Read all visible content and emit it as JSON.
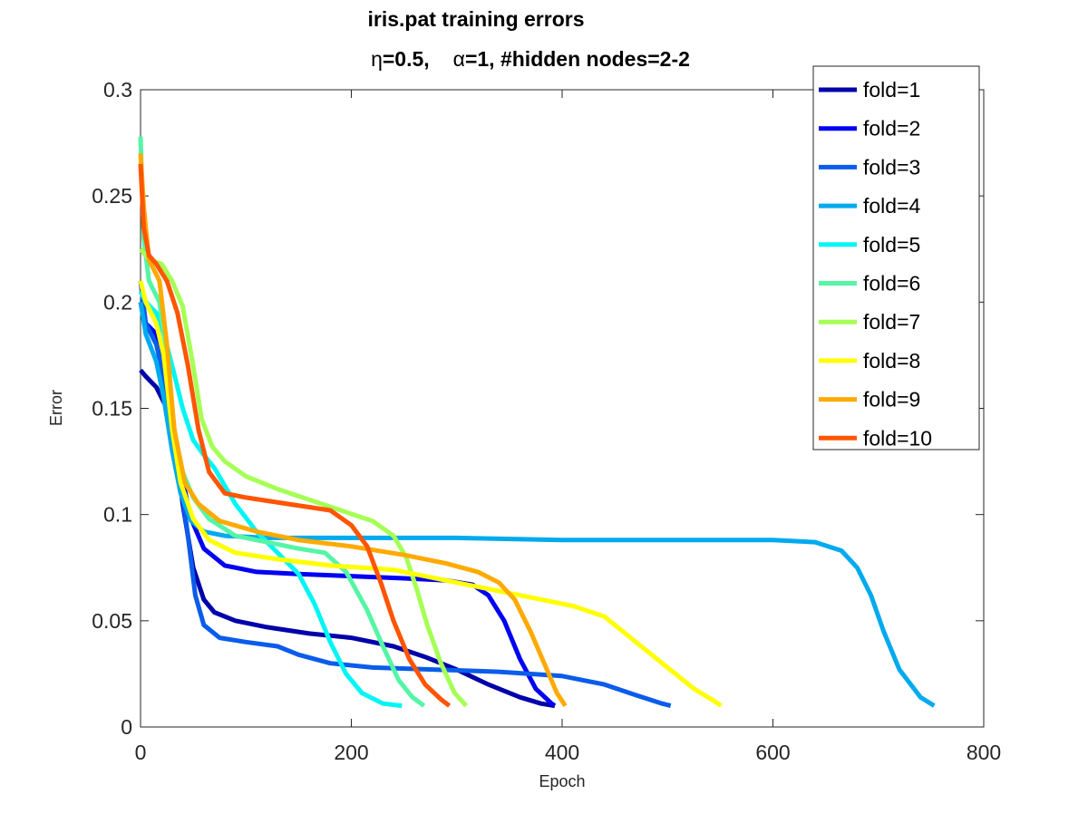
{
  "chart_data": {
    "type": "line",
    "title": "iris.pat training errors",
    "subtitle_parts": [
      "η",
      "=0.5,",
      "α",
      "=1, #hidden nodes=2-2"
    ],
    "xlabel": "Epoch",
    "ylabel": "Error",
    "xlim": [
      0,
      800
    ],
    "ylim": [
      0,
      0.3
    ],
    "xticks": [
      0,
      200,
      400,
      600,
      800
    ],
    "xtick_labels": [
      "0",
      "200",
      "400",
      "600",
      "800"
    ],
    "yticks": [
      0,
      0.05,
      0.1,
      0.15,
      0.2,
      0.25,
      0.3
    ],
    "ytick_labels": [
      "0",
      "0.05",
      "0.1",
      "0.15",
      "0.2",
      "0.25",
      "0.3"
    ],
    "grid": false,
    "legend_position": "top-right",
    "series": [
      {
        "name": "fold=1",
        "color": "#0000AA",
        "points": [
          [
            0,
            0.168
          ],
          [
            5,
            0.165
          ],
          [
            15,
            0.16
          ],
          [
            25,
            0.15
          ],
          [
            35,
            0.125
          ],
          [
            40,
            0.105
          ],
          [
            50,
            0.075
          ],
          [
            60,
            0.06
          ],
          [
            70,
            0.054
          ],
          [
            90,
            0.05
          ],
          [
            120,
            0.047
          ],
          [
            160,
            0.044
          ],
          [
            200,
            0.042
          ],
          [
            240,
            0.038
          ],
          [
            270,
            0.033
          ],
          [
            300,
            0.027
          ],
          [
            330,
            0.02
          ],
          [
            360,
            0.014
          ],
          [
            380,
            0.011
          ],
          [
            393,
            0.01
          ]
        ]
      },
      {
        "name": "fold=2",
        "color": "#0000F2",
        "points": [
          [
            0,
            0.2
          ],
          [
            5,
            0.19
          ],
          [
            15,
            0.185
          ],
          [
            25,
            0.17
          ],
          [
            32,
            0.14
          ],
          [
            38,
            0.12
          ],
          [
            48,
            0.098
          ],
          [
            60,
            0.084
          ],
          [
            80,
            0.076
          ],
          [
            110,
            0.073
          ],
          [
            150,
            0.072
          ],
          [
            200,
            0.071
          ],
          [
            250,
            0.07
          ],
          [
            290,
            0.069
          ],
          [
            315,
            0.067
          ],
          [
            330,
            0.062
          ],
          [
            345,
            0.05
          ],
          [
            360,
            0.032
          ],
          [
            375,
            0.018
          ],
          [
            390,
            0.011
          ],
          [
            393,
            0.01
          ]
        ]
      },
      {
        "name": "fold=3",
        "color": "#0A5CEB",
        "points": [
          [
            0,
            0.21
          ],
          [
            5,
            0.19
          ],
          [
            15,
            0.18
          ],
          [
            22,
            0.165
          ],
          [
            30,
            0.14
          ],
          [
            38,
            0.115
          ],
          [
            45,
            0.09
          ],
          [
            52,
            0.062
          ],
          [
            60,
            0.048
          ],
          [
            75,
            0.042
          ],
          [
            100,
            0.04
          ],
          [
            130,
            0.038
          ],
          [
            150,
            0.034
          ],
          [
            180,
            0.03
          ],
          [
            220,
            0.028
          ],
          [
            280,
            0.027
          ],
          [
            340,
            0.026
          ],
          [
            400,
            0.024
          ],
          [
            440,
            0.02
          ],
          [
            470,
            0.015
          ],
          [
            495,
            0.011
          ],
          [
            503,
            0.01
          ]
        ]
      },
      {
        "name": "fold=4",
        "color": "#00AAEE",
        "points": [
          [
            0,
            0.2
          ],
          [
            5,
            0.185
          ],
          [
            15,
            0.172
          ],
          [
            22,
            0.155
          ],
          [
            30,
            0.13
          ],
          [
            38,
            0.11
          ],
          [
            48,
            0.097
          ],
          [
            60,
            0.092
          ],
          [
            80,
            0.09
          ],
          [
            120,
            0.089
          ],
          [
            200,
            0.089
          ],
          [
            300,
            0.089
          ],
          [
            400,
            0.088
          ],
          [
            500,
            0.088
          ],
          [
            600,
            0.088
          ],
          [
            640,
            0.087
          ],
          [
            665,
            0.083
          ],
          [
            680,
            0.075
          ],
          [
            693,
            0.062
          ],
          [
            705,
            0.045
          ],
          [
            720,
            0.027
          ],
          [
            740,
            0.014
          ],
          [
            753,
            0.01
          ]
        ]
      },
      {
        "name": "fold=5",
        "color": "#00F5F5",
        "points": [
          [
            0,
            0.205
          ],
          [
            5,
            0.2
          ],
          [
            15,
            0.195
          ],
          [
            22,
            0.185
          ],
          [
            30,
            0.17
          ],
          [
            40,
            0.15
          ],
          [
            50,
            0.135
          ],
          [
            60,
            0.128
          ],
          [
            70,
            0.122
          ],
          [
            90,
            0.105
          ],
          [
            110,
            0.092
          ],
          [
            130,
            0.082
          ],
          [
            150,
            0.072
          ],
          [
            165,
            0.058
          ],
          [
            180,
            0.04
          ],
          [
            195,
            0.025
          ],
          [
            210,
            0.016
          ],
          [
            230,
            0.011
          ],
          [
            248,
            0.01
          ]
        ]
      },
      {
        "name": "fold=6",
        "color": "#55F5A5",
        "points": [
          [
            0,
            0.278
          ],
          [
            3,
            0.23
          ],
          [
            8,
            0.21
          ],
          [
            18,
            0.2
          ],
          [
            25,
            0.175
          ],
          [
            32,
            0.14
          ],
          [
            40,
            0.12
          ],
          [
            50,
            0.108
          ],
          [
            65,
            0.098
          ],
          [
            90,
            0.09
          ],
          [
            120,
            0.087
          ],
          [
            150,
            0.084
          ],
          [
            175,
            0.082
          ],
          [
            195,
            0.073
          ],
          [
            215,
            0.055
          ],
          [
            230,
            0.038
          ],
          [
            245,
            0.022
          ],
          [
            258,
            0.014
          ],
          [
            269,
            0.01
          ]
        ]
      },
      {
        "name": "fold=7",
        "color": "#A5FF55",
        "points": [
          [
            0,
            0.225
          ],
          [
            8,
            0.22
          ],
          [
            20,
            0.218
          ],
          [
            30,
            0.21
          ],
          [
            40,
            0.198
          ],
          [
            50,
            0.17
          ],
          [
            58,
            0.145
          ],
          [
            68,
            0.132
          ],
          [
            80,
            0.125
          ],
          [
            100,
            0.118
          ],
          [
            130,
            0.112
          ],
          [
            160,
            0.107
          ],
          [
            190,
            0.102
          ],
          [
            220,
            0.097
          ],
          [
            240,
            0.09
          ],
          [
            252,
            0.08
          ],
          [
            262,
            0.065
          ],
          [
            272,
            0.048
          ],
          [
            285,
            0.03
          ],
          [
            298,
            0.016
          ],
          [
            309,
            0.01
          ]
        ]
      },
      {
        "name": "fold=8",
        "color": "#FFFF00",
        "points": [
          [
            0,
            0.21
          ],
          [
            5,
            0.2
          ],
          [
            15,
            0.19
          ],
          [
            22,
            0.175
          ],
          [
            30,
            0.14
          ],
          [
            38,
            0.115
          ],
          [
            50,
            0.098
          ],
          [
            65,
            0.088
          ],
          [
            90,
            0.082
          ],
          [
            130,
            0.079
          ],
          [
            180,
            0.076
          ],
          [
            240,
            0.074
          ],
          [
            300,
            0.068
          ],
          [
            360,
            0.062
          ],
          [
            410,
            0.057
          ],
          [
            440,
            0.052
          ],
          [
            470,
            0.04
          ],
          [
            500,
            0.028
          ],
          [
            525,
            0.018
          ],
          [
            545,
            0.012
          ],
          [
            551,
            0.01
          ]
        ]
      },
      {
        "name": "fold=9",
        "color": "#FFAA00",
        "points": [
          [
            0,
            0.27
          ],
          [
            3,
            0.245
          ],
          [
            8,
            0.22
          ],
          [
            18,
            0.21
          ],
          [
            25,
            0.18
          ],
          [
            32,
            0.14
          ],
          [
            42,
            0.115
          ],
          [
            55,
            0.105
          ],
          [
            75,
            0.097
          ],
          [
            110,
            0.092
          ],
          [
            150,
            0.088
          ],
          [
            200,
            0.085
          ],
          [
            250,
            0.081
          ],
          [
            290,
            0.077
          ],
          [
            320,
            0.073
          ],
          [
            340,
            0.068
          ],
          [
            355,
            0.06
          ],
          [
            370,
            0.045
          ],
          [
            383,
            0.03
          ],
          [
            395,
            0.016
          ],
          [
            403,
            0.01
          ]
        ]
      },
      {
        "name": "fold=10",
        "color": "#FF5500",
        "points": [
          [
            0,
            0.265
          ],
          [
            3,
            0.235
          ],
          [
            8,
            0.222
          ],
          [
            15,
            0.218
          ],
          [
            25,
            0.21
          ],
          [
            35,
            0.195
          ],
          [
            45,
            0.17
          ],
          [
            55,
            0.14
          ],
          [
            65,
            0.12
          ],
          [
            80,
            0.11
          ],
          [
            100,
            0.108
          ],
          [
            140,
            0.105
          ],
          [
            180,
            0.102
          ],
          [
            200,
            0.095
          ],
          [
            215,
            0.085
          ],
          [
            228,
            0.068
          ],
          [
            240,
            0.05
          ],
          [
            255,
            0.032
          ],
          [
            270,
            0.02
          ],
          [
            285,
            0.013
          ],
          [
            293,
            0.01
          ]
        ]
      }
    ]
  }
}
